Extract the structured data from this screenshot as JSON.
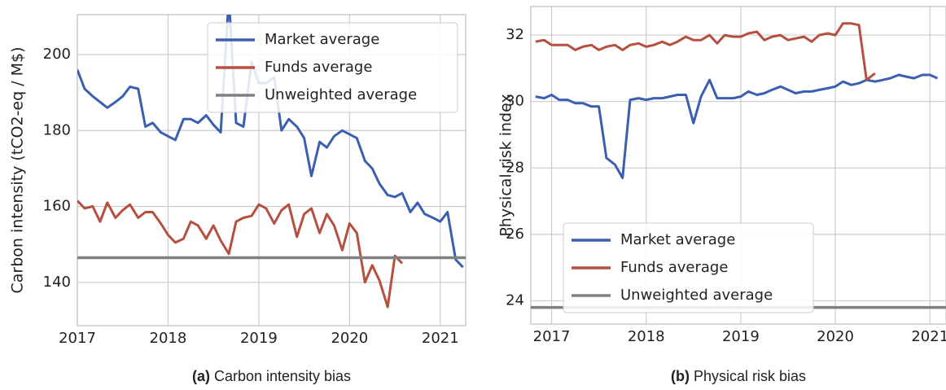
{
  "chart_data": [
    {
      "type": "line",
      "ylabel": "Carbon intensity (tCO2-eq / M$)",
      "caption_label": "(a)",
      "caption": "Carbon intensity bias",
      "xlim": [
        2017,
        2021.28
      ],
      "xticks": [
        2017,
        2018,
        2019,
        2020,
        2021
      ],
      "ylim": [
        128.6,
        210.5
      ],
      "yticks": [
        140,
        160,
        180,
        200
      ],
      "grid": true,
      "legend": "upper right",
      "x": [
        2017,
        2017.08,
        2017.17,
        2017.25,
        2017.33,
        2017.42,
        2017.5,
        2017.58,
        2017.67,
        2017.75,
        2017.83,
        2017.92,
        2018,
        2018.08,
        2018.17,
        2018.25,
        2018.33,
        2018.42,
        2018.5,
        2018.58,
        2018.67,
        2018.75,
        2018.83,
        2018.92,
        2019,
        2019.08,
        2019.17,
        2019.25,
        2019.33,
        2019.42,
        2019.5,
        2019.58,
        2019.67,
        2019.75,
        2019.83,
        2019.92,
        2020,
        2020.08,
        2020.17,
        2020.25,
        2020.33,
        2020.42,
        2020.5,
        2020.58,
        2020.67,
        2020.75,
        2020.83,
        2020.92,
        2021,
        2021.08,
        2021.17,
        2021.25
      ],
      "series": [
        {
          "name": "Market average",
          "color": "#3a5fb0",
          "values": [
            196,
            191,
            189,
            187.5,
            186,
            187.5,
            189,
            191.5,
            191,
            181,
            182,
            179.5,
            178.5,
            177.5,
            183,
            183,
            182,
            184,
            181.5,
            179.5,
            215,
            182,
            181,
            198,
            192.5,
            192.5,
            194,
            180,
            183,
            181,
            178,
            168,
            177,
            175.5,
            178.5,
            180,
            179,
            178,
            172,
            170,
            166,
            163,
            162.5,
            163.5,
            158.5,
            161,
            158,
            157,
            156,
            158.5,
            146,
            144
          ]
        },
        {
          "name": "Funds average",
          "color": "#b5503f",
          "values": [
            161.5,
            159.5,
            160,
            156,
            161,
            157,
            159,
            160.5,
            157,
            158.5,
            158.5,
            155.5,
            152.5,
            150.5,
            151.5,
            156,
            155,
            151.5,
            155,
            151,
            147.5,
            156,
            157,
            157.5,
            160.5,
            159.5,
            155.5,
            159,
            160.5,
            152,
            158,
            159.5,
            153,
            158,
            155,
            148.5,
            155.5,
            153,
            140,
            144.5,
            140.5,
            133.5,
            147,
            145,
            null,
            null,
            null,
            null,
            null,
            null,
            null,
            null
          ]
        },
        {
          "name": "Unweighted average",
          "color": "#808080",
          "kind": "hline",
          "value": 146.5
        }
      ]
    },
    {
      "type": "line",
      "ylabel": "Physical risk index",
      "caption_label": "(b)",
      "caption": "Physical risk bias",
      "xlim": [
        2016.78,
        2021.17
      ],
      "xticks": [
        2017,
        2018,
        2019,
        2020,
        2021
      ],
      "ylim": [
        23.3,
        32.86
      ],
      "yticks": [
        24,
        26,
        28,
        30,
        32
      ],
      "grid": true,
      "legend": "lower left",
      "x": [
        2016.83,
        2016.92,
        2017,
        2017.08,
        2017.17,
        2017.25,
        2017.33,
        2017.42,
        2017.5,
        2017.58,
        2017.67,
        2017.75,
        2017.83,
        2017.92,
        2018,
        2018.08,
        2018.17,
        2018.25,
        2018.33,
        2018.42,
        2018.5,
        2018.58,
        2018.67,
        2018.75,
        2018.83,
        2018.92,
        2019,
        2019.08,
        2019.17,
        2019.25,
        2019.33,
        2019.42,
        2019.5,
        2019.58,
        2019.67,
        2019.75,
        2019.83,
        2019.92,
        2020,
        2020.08,
        2020.17,
        2020.25,
        2020.33,
        2020.42,
        2020.5,
        2020.58,
        2020.67,
        2020.75,
        2020.83,
        2020.92,
        2021,
        2021.08
      ],
      "series": [
        {
          "name": "Market average",
          "color": "#3a5fb0",
          "values": [
            30.15,
            30.1,
            30.2,
            30.05,
            30.05,
            29.95,
            29.95,
            29.85,
            29.85,
            28.3,
            28.1,
            27.7,
            30.05,
            30.1,
            30.05,
            30.1,
            30.1,
            30.15,
            30.2,
            30.2,
            29.35,
            30.15,
            30.65,
            30.1,
            30.1,
            30.1,
            30.15,
            30.3,
            30.2,
            30.25,
            30.35,
            30.45,
            30.35,
            30.25,
            30.3,
            30.3,
            30.35,
            30.4,
            30.45,
            30.6,
            30.5,
            30.55,
            30.65,
            30.6,
            30.65,
            30.7,
            30.8,
            30.75,
            30.7,
            30.8,
            30.8,
            30.7
          ]
        },
        {
          "name": "Funds average",
          "color": "#b5503f",
          "values": [
            31.8,
            31.85,
            31.7,
            31.7,
            31.7,
            31.55,
            31.65,
            31.7,
            31.55,
            31.65,
            31.7,
            31.55,
            31.7,
            31.75,
            31.65,
            31.7,
            31.8,
            31.7,
            31.8,
            31.95,
            31.85,
            31.85,
            32.0,
            31.75,
            32.0,
            31.95,
            31.95,
            32.05,
            32.1,
            31.85,
            31.95,
            32.0,
            31.85,
            31.9,
            31.95,
            31.8,
            32.0,
            32.05,
            32.0,
            32.35,
            32.35,
            32.3,
            30.65,
            30.85,
            null,
            null,
            null,
            null,
            null,
            null,
            null,
            null
          ]
        },
        {
          "name": "Unweighted average",
          "color": "#808080",
          "kind": "hline",
          "value": 23.8
        }
      ]
    }
  ]
}
